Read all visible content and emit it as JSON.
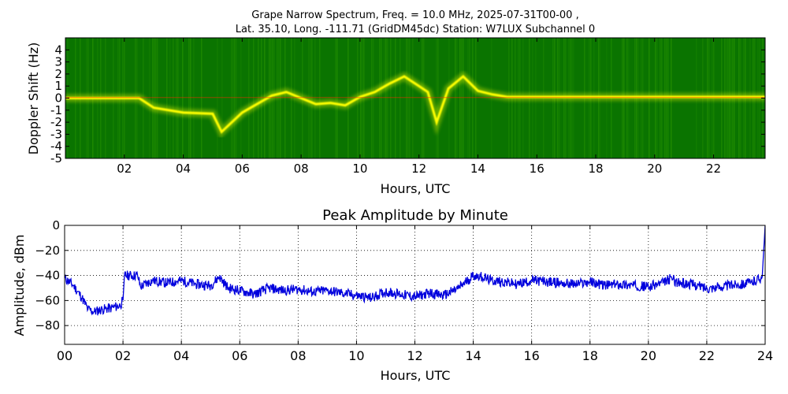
{
  "suptitle": {
    "line1": "Grape Narrow Spectrum, Freq. = 10.0 MHz, 2025-07-31T00-00 ,",
    "line2": "Lat.  35.10, Long. -111.71 (GridDM45dc) Station: W7LUX Subchannel 0"
  },
  "colors": {
    "spectrum_background": "#0a7400",
    "spectrum_mid": "#2d9a00",
    "spectrum_signal": "#ffff00",
    "spectrum_peak": "#ff2a00",
    "amplitude_line": "#0000dd",
    "grid": "#000000"
  },
  "chart_data": [
    {
      "type": "heatmap",
      "title": "",
      "xlabel": "Hours, UTC",
      "ylabel": "Doppler Shift (Hz)",
      "xlim": [
        0,
        23.75
      ],
      "ylim": [
        -5,
        5
      ],
      "xticks": [
        2,
        4,
        6,
        8,
        10,
        12,
        14,
        16,
        18,
        20,
        22
      ],
      "xtick_labels": [
        "02",
        "04",
        "06",
        "08",
        "10",
        "12",
        "14",
        "16",
        "18",
        "20",
        "22"
      ],
      "yticks": [
        -5,
        -4,
        -3,
        -2,
        -1,
        0,
        1,
        2,
        3,
        4
      ],
      "ytick_labels": [
        "-5",
        "-4",
        "-3",
        "-2",
        "-1",
        "0",
        "1",
        "2",
        "3",
        "4"
      ],
      "grid": false,
      "series": [
        {
          "x": [
            0,
            1,
            2,
            2.5,
            3,
            4,
            5,
            5.3,
            6,
            7,
            7.5,
            8,
            8.5,
            9,
            9.5,
            10,
            10.5,
            11,
            11.5,
            12,
            12.3,
            12.6,
            13,
            13.5,
            14,
            14.5,
            15,
            16,
            18,
            20,
            22,
            23.75
          ],
          "y": [
            0,
            0,
            0,
            0,
            -0.8,
            -1.2,
            -1.3,
            -2.8,
            -1.2,
            0.2,
            0.5,
            0,
            -0.5,
            -0.4,
            -0.6,
            0.1,
            0.5,
            1.2,
            1.8,
            1.0,
            0.5,
            -2.0,
            0.8,
            1.8,
            0.6,
            0.3,
            0.1,
            0.1,
            0.1,
            0.1,
            0.1,
            0.1
          ]
        }
      ]
    },
    {
      "type": "line",
      "title": "Peak Amplitude by Minute",
      "xlabel": "Hours, UTC",
      "ylabel": "Amplitude, dBm",
      "xlim": [
        0,
        24
      ],
      "ylim": [
        -95,
        0
      ],
      "xticks": [
        0,
        2,
        4,
        6,
        8,
        10,
        12,
        14,
        16,
        18,
        20,
        22,
        24
      ],
      "xtick_labels": [
        "00",
        "02",
        "04",
        "06",
        "08",
        "10",
        "12",
        "14",
        "16",
        "18",
        "20",
        "22",
        "24"
      ],
      "yticks": [
        0,
        -20,
        -40,
        -60,
        -80
      ],
      "ytick_labels": [
        "0",
        "−20",
        "−40",
        "−60",
        "−80"
      ],
      "grid": true,
      "series": [
        {
          "x": [
            0,
            0.3,
            0.6,
            0.8,
            1.0,
            1.3,
            1.6,
            1.9,
            2.0,
            2.05,
            2.5,
            2.6,
            3.0,
            3.5,
            4.0,
            4.5,
            5.0,
            5.3,
            5.6,
            6.0,
            6.5,
            7.0,
            7.5,
            8.0,
            8.5,
            9.0,
            9.5,
            10.0,
            10.5,
            11.0,
            11.5,
            12.0,
            12.5,
            13.0,
            13.5,
            14.0,
            14.3,
            14.6,
            15.0,
            15.5,
            16.0,
            16.5,
            17.0,
            17.5,
            18.0,
            18.5,
            19.0,
            19.5,
            20.0,
            20.5,
            20.8,
            21.0,
            21.5,
            22.0,
            22.5,
            23.0,
            23.5,
            23.9,
            24.0
          ],
          "y": [
            -42,
            -48,
            -58,
            -67,
            -69,
            -67,
            -66,
            -64,
            -60,
            -40,
            -40,
            -49,
            -44,
            -46,
            -44,
            -47,
            -48,
            -41,
            -50,
            -52,
            -55,
            -50,
            -52,
            -51,
            -53,
            -52,
            -54,
            -56,
            -58,
            -53,
            -55,
            -57,
            -54,
            -56,
            -50,
            -40,
            -41,
            -44,
            -45,
            -47,
            -44,
            -45,
            -46,
            -47,
            -45,
            -48,
            -47,
            -48,
            -49,
            -46,
            -42,
            -46,
            -47,
            -50,
            -49,
            -47,
            -46,
            -41,
            0
          ]
        }
      ]
    }
  ]
}
